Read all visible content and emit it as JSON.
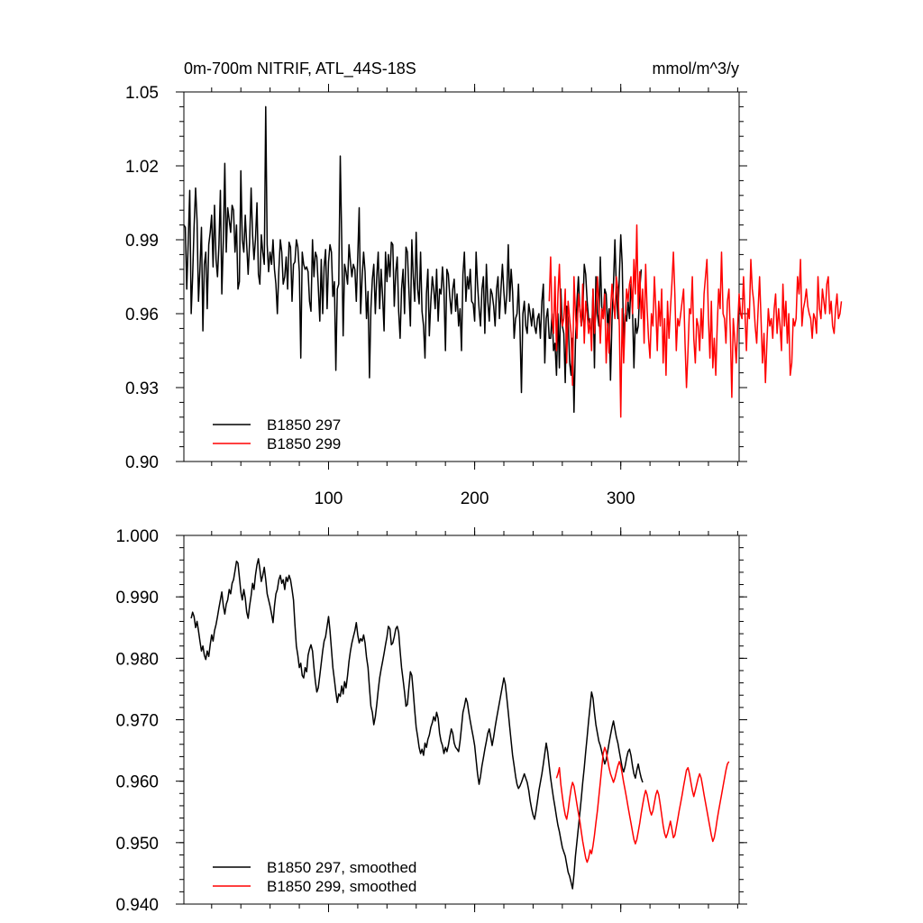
{
  "chart_data": [
    {
      "type": "line",
      "title": "0m-700m NITRIF, ATL_44S-18S",
      "units": "mmol/m^3/y",
      "xlim": [
        1,
        381
      ],
      "ylim": [
        0.9,
        1.05
      ],
      "x_ticks": [
        100,
        200,
        300
      ],
      "y_ticks": [
        "0.90",
        "0.93",
        "0.96",
        "0.99",
        "1.02",
        "1.05"
      ],
      "legend_position": "bottom-left",
      "grid": false,
      "series": [
        {
          "name": "B1850 297",
          "color": "#000000",
          "x_start": 1,
          "values": [
            0.996,
            0.995,
            0.97,
            0.99,
            1.01,
            0.96,
            0.975,
            0.995,
            1.011,
            0.998,
            0.965,
            0.978,
            0.995,
            0.953,
            0.98,
            0.985,
            0.962,
            0.988,
            0.993,
            1.0,
            0.979,
            1.004,
            0.982,
            0.975,
            0.988,
            1.01,
            0.968,
            0.99,
            1.021,
            0.985,
            1.003,
            0.998,
            0.993,
            1.004,
            1.002,
            0.985,
            0.996,
            0.97,
            0.973,
            1.018,
            0.99,
            0.985,
            1.0,
            0.988,
            0.976,
            0.989,
            1.011,
            0.992,
            0.982,
            0.99,
            1.005,
            0.976,
            0.972,
            0.992,
            0.985,
            0.98,
            1.044,
            0.988,
            0.977,
            0.985,
            0.98,
            0.99,
            0.978,
            0.972,
            0.96,
            0.978,
            0.99,
            0.985,
            0.972,
            0.975,
            0.983,
            0.97,
            0.989,
            0.987,
            0.965,
            0.98,
            0.981,
            0.99,
            0.987,
            0.977,
            0.942,
            0.985,
            0.98,
            0.978,
            0.979,
            0.977,
            0.965,
            0.961,
            0.99,
            0.975,
            0.985,
            0.983,
            0.971,
            0.957,
            0.982,
            0.96,
            0.979,
            0.986,
            0.962,
            0.981,
            0.988,
            0.985,
            0.967,
            0.973,
            0.937,
            0.97,
            0.972,
            1.024,
            0.99,
            0.951,
            0.98,
            0.977,
            0.972,
            0.988,
            0.981,
            0.975,
            0.98,
            0.978,
            0.965,
            0.983,
            1.003,
            0.96,
            0.975,
            0.985,
            0.977,
            0.958,
            0.969,
            0.934,
            0.962,
            0.974,
            0.98,
            0.96,
            0.975,
            0.985,
            0.962,
            0.978,
            0.967,
            0.953,
            0.985,
            0.973,
            0.984,
            0.975,
            0.989,
            0.988,
            0.963,
            0.977,
            0.983,
            0.961,
            0.95,
            0.97,
            0.978,
            0.96,
            0.987,
            0.985,
            0.97,
            0.955,
            0.99,
            0.975,
            0.965,
            0.993,
            0.97,
            0.964,
            0.985,
            0.961,
            0.955,
            0.942,
            0.968,
            0.978,
            0.951,
            0.965,
            0.975,
            0.97,
            0.962,
            0.978,
            0.957,
            0.97,
            0.968,
            0.979,
            0.97,
            0.945,
            0.978,
            0.976,
            0.967,
            0.96,
            0.97,
            0.974,
            0.961,
            0.968,
            0.955,
            0.962,
            0.945,
            0.976,
            0.985,
            0.965,
            0.975,
            0.97,
            0.978,
            0.965,
            0.964,
            0.957,
            0.985,
            0.972,
            0.962,
            0.955,
            0.97,
            0.975,
            0.952,
            0.98,
            0.965,
            0.957,
            0.97,
            0.968,
            0.963,
            0.955,
            0.97,
            0.975,
            0.958,
            0.97,
            0.98,
            0.969,
            0.96,
            0.968,
            0.988,
            0.965,
            0.978,
            0.969,
            0.95,
            0.958,
            0.96,
            0.972,
            0.955,
            0.928,
            0.96,
            0.965,
            0.955,
            0.952,
            0.964,
            0.96,
            0.955,
            0.962,
            0.955,
            0.952,
            0.958,
            0.96,
            0.95,
            0.965,
            0.972,
            0.94,
            0.958,
            0.962,
            0.95,
            0.95,
            0.96,
            0.945,
            0.948,
            0.935,
            0.96,
            0.938,
            0.97,
            0.955,
            0.952,
            0.932,
            0.963,
            0.958,
            0.94,
            0.935,
            0.95,
            0.92,
            0.948,
            0.965,
            0.975,
            0.962,
            0.955,
            0.96,
            0.98,
            0.976,
            0.965,
            0.958,
            0.955,
            0.95,
            0.97,
            0.938,
            0.975,
            0.96,
            0.955,
            0.983,
            0.963,
            0.958,
            0.97,
            0.968,
            0.955,
            0.962,
            0.933,
            0.958,
            0.972,
            0.99,
            0.97,
            0.958,
            0.975,
            0.992,
            0.98,
            0.948,
            0.96,
            0.957,
            0.965,
            0.958,
            0.972,
            0.962,
            0.938,
            0.958,
            0.952,
            0.955,
            0.97,
            0.978
          ]
        },
        {
          "name": "B1850 299",
          "color": "#ff0000",
          "x_start": 251,
          "values": [
            0.965,
            0.983,
            0.958,
            0.952,
            0.975,
            0.945,
            0.968,
            0.98,
            0.96,
            0.955,
            0.958,
            0.97,
            0.94,
            0.965,
            0.958,
            0.952,
            0.931,
            0.975,
            0.96,
            0.95,
            0.968,
            0.962,
            0.955,
            0.972,
            0.948,
            0.965,
            0.96,
            0.952,
            0.958,
            0.945,
            0.97,
            0.952,
            0.96,
            0.975,
            0.963,
            0.948,
            0.962,
            0.958,
            0.968,
            0.94,
            0.956,
            0.944,
            0.961,
            0.972,
            0.965,
            0.958,
            0.975,
            0.97,
            0.955,
            0.918,
            0.962,
            0.94,
            0.958,
            0.97,
            0.965,
            0.972,
            0.975,
            0.96,
            0.982,
            0.968,
            0.996,
            0.962,
            0.977,
            0.958,
            0.97,
            0.948,
            0.98,
            0.962,
            0.95,
            0.942,
            0.96,
            0.955,
            0.975,
            0.962,
            0.945,
            0.965,
            0.955,
            0.97,
            0.94,
            0.958,
            0.935,
            0.965,
            0.95,
            0.962,
            0.972,
            0.985,
            0.968,
            0.945,
            0.958,
            0.955,
            0.96,
            0.965,
            0.97,
            0.948,
            0.93,
            0.945,
            0.962,
            0.96,
            0.975,
            0.95,
            0.94,
            0.958,
            0.955,
            0.945,
            0.962,
            0.95,
            0.968,
            0.975,
            0.982,
            0.958,
            0.942,
            0.965,
            0.938,
            0.95,
            0.935,
            0.955,
            0.97,
            0.962,
            0.985,
            0.96,
            0.958,
            0.948,
            0.965,
            0.97,
            0.952,
            0.926,
            0.958,
            0.95,
            0.94,
            0.955,
            0.968,
            0.96,
            0.958,
            0.975,
            0.96,
            0.945,
            0.962,
            0.958,
            0.982,
            0.97,
            0.965,
            0.955,
            0.948,
            0.962,
            0.975,
            0.958,
            0.94,
            0.952,
            0.932,
            0.948,
            0.962,
            0.955,
            0.958,
            0.95,
            0.962,
            0.968,
            0.952,
            0.962,
            0.955,
            0.945,
            0.972,
            0.955,
            0.965,
            0.948,
            0.96,
            0.935,
            0.94,
            0.958,
            0.955,
            0.958,
            0.975,
            0.968,
            0.982,
            0.955,
            0.962,
            0.965,
            0.97,
            0.963,
            0.96,
            0.958,
            0.95,
            0.96,
            0.958,
            0.952,
            0.975,
            0.962,
            0.958,
            0.97,
            0.965,
            0.96,
            0.972,
            0.975,
            0.96,
            0.965,
            0.955,
            0.952,
            0.962,
            0.968,
            0.958,
            0.96,
            0.965
          ]
        }
      ]
    },
    {
      "type": "line",
      "title": "",
      "xlim": [
        1,
        381
      ],
      "ylim": [
        0.94,
        1.0
      ],
      "x_ticks": [
        100,
        200,
        300
      ],
      "y_ticks": [
        "0.940",
        "0.950",
        "0.960",
        "0.970",
        "0.980",
        "0.990",
        "1.000"
      ],
      "legend_position": "bottom-left",
      "grid": false,
      "series": [
        {
          "name": "B1850 297, smoothed",
          "color": "#000000",
          "x_start": 6,
          "values": [
            0.9865,
            0.9875,
            0.9868,
            0.985,
            0.986,
            0.9845,
            0.9828,
            0.9812,
            0.982,
            0.9805,
            0.9798,
            0.9812,
            0.9803,
            0.9822,
            0.9838,
            0.9828,
            0.9845,
            0.9855,
            0.9868,
            0.9882,
            0.9895,
            0.9908,
            0.9885,
            0.9872,
            0.9888,
            0.9895,
            0.9912,
            0.9905,
            0.9922,
            0.9928,
            0.9942,
            0.9958,
            0.9955,
            0.9932,
            0.9908,
            0.9895,
            0.9912,
            0.9898,
            0.9875,
            0.9865,
            0.9885,
            0.9902,
            0.9922,
            0.9912,
            0.9935,
            0.9952,
            0.9962,
            0.9945,
            0.9925,
            0.9935,
            0.9948,
            0.9928,
            0.9905,
            0.9895,
            0.9885,
            0.9872,
            0.9858,
            0.9885,
            0.9905,
            0.9912,
            0.9928,
            0.9935,
            0.9922,
            0.9928,
            0.9912,
            0.9932,
            0.9925,
            0.9935,
            0.9928,
            0.9912,
            0.9895,
            0.9855,
            0.982,
            0.9805,
            0.9785,
            0.9792,
            0.9772,
            0.9768,
            0.9785,
            0.9778,
            0.9805,
            0.9815,
            0.9822,
            0.9812,
            0.9785,
            0.9762,
            0.9745,
            0.9752,
            0.9772,
            0.9792,
            0.9812,
            0.9828,
            0.9835,
            0.9852,
            0.9868,
            0.9845,
            0.9815,
            0.9785,
            0.9765,
            0.9745,
            0.9728,
            0.9742,
            0.9738,
            0.9755,
            0.9742,
            0.9762,
            0.9752,
            0.9772,
            0.9795,
            0.9812,
            0.9825,
            0.9835,
            0.9845,
            0.9858,
            0.9838,
            0.9825,
            0.9832,
            0.9828,
            0.9838,
            0.9825,
            0.9802,
            0.9785,
            0.9752,
            0.9722,
            0.9712,
            0.9692,
            0.9705,
            0.9725,
            0.9748,
            0.9768,
            0.9782,
            0.9795,
            0.9808,
            0.9822,
            0.9835,
            0.9852,
            0.9848,
            0.9822,
            0.9825,
            0.9835,
            0.9848,
            0.9852,
            0.9842,
            0.9812,
            0.9785,
            0.9765,
            0.9745,
            0.9722,
            0.9725,
            0.9752,
            0.9778,
            0.9772,
            0.9745,
            0.9715,
            0.9688,
            0.9672,
            0.9655,
            0.9645,
            0.9652,
            0.9642,
            0.9662,
            0.9655,
            0.9668,
            0.9675,
            0.9688,
            0.9695,
            0.9705,
            0.9698,
            0.9712,
            0.9702,
            0.9678,
            0.9665,
            0.9658,
            0.9645,
            0.9655,
            0.9648,
            0.9658,
            0.9672,
            0.9685,
            0.9678,
            0.9662,
            0.9655,
            0.9652,
            0.9648,
            0.9665,
            0.9688,
            0.9712,
            0.9722,
            0.9735,
            0.9728,
            0.9712,
            0.9698,
            0.9685,
            0.9672,
            0.9658,
            0.9635,
            0.9612,
            0.9595,
            0.9608,
            0.9625,
            0.9638,
            0.9652,
            0.9665,
            0.9678,
            0.9685,
            0.9672,
            0.9658,
            0.9672,
            0.9688,
            0.9702,
            0.9715,
            0.9728,
            0.9742,
            0.9755,
            0.9768,
            0.9758,
            0.9735,
            0.9712,
            0.9688,
            0.9665,
            0.9642,
            0.9625,
            0.9608,
            0.9595,
            0.9588,
            0.9592,
            0.9598,
            0.9605,
            0.9612,
            0.9605,
            0.9598,
            0.9585,
            0.9568,
            0.9555,
            0.9545,
            0.9538,
            0.9552,
            0.9568,
            0.9585,
            0.9598,
            0.9612,
            0.9628,
            0.9645,
            0.9662,
            0.9648,
            0.9625,
            0.9605,
            0.9588,
            0.9572,
            0.9558,
            0.9542,
            0.9528,
            0.9518,
            0.9505,
            0.9492,
            0.9485,
            0.9478,
            0.9465,
            0.9452,
            0.9445,
            0.9435,
            0.9425,
            0.9448,
            0.9478,
            0.9502,
            0.9525,
            0.9548,
            0.9572,
            0.9598,
            0.9622,
            0.9648,
            0.9672,
            0.9698,
            0.9722,
            0.9745,
            0.9735,
            0.9712,
            0.9692,
            0.9678,
            0.9665,
            0.9658,
            0.9648,
            0.9638,
            0.9628,
            0.9635,
            0.9648,
            0.9662,
            0.9675,
            0.9688,
            0.9698,
            0.9685,
            0.9672,
            0.9662,
            0.9648,
            0.9635,
            0.9622,
            0.9615,
            0.9625,
            0.9638,
            0.9648,
            0.9652,
            0.9642,
            0.9625,
            0.9612,
            0.9605,
            0.9618,
            0.9628,
            0.9615,
            0.9605,
            0.9598
          ]
        },
        {
          "name": "B1850 299, smoothed",
          "color": "#ff0000",
          "x_start": 256,
          "values": [
            0.9605,
            0.9612,
            0.9622,
            0.9595,
            0.9575,
            0.9558,
            0.9545,
            0.9538,
            0.9552,
            0.9572,
            0.9588,
            0.9598,
            0.9592,
            0.9578,
            0.9562,
            0.9548,
            0.9535,
            0.9518,
            0.9502,
            0.9488,
            0.9475,
            0.9468,
            0.9475,
            0.9488,
            0.9482,
            0.9495,
            0.9512,
            0.9532,
            0.9552,
            0.9575,
            0.9598,
            0.9622,
            0.9645,
            0.9655,
            0.9648,
            0.9635,
            0.9622,
            0.9612,
            0.9605,
            0.9598,
            0.9605,
            0.9615,
            0.9625,
            0.9632,
            0.9625,
            0.9612,
            0.9598,
            0.9585,
            0.9572,
            0.9558,
            0.9545,
            0.9532,
            0.9518,
            0.9505,
            0.9498,
            0.9505,
            0.9518,
            0.9532,
            0.9548,
            0.9562,
            0.9575,
            0.9585,
            0.9578,
            0.9565,
            0.9552,
            0.9545,
            0.9552,
            0.9565,
            0.9578,
            0.9585,
            0.9578,
            0.9562,
            0.9545,
            0.9528,
            0.9515,
            0.9508,
            0.9515,
            0.9525,
            0.9535,
            0.9522,
            0.9508,
            0.9512,
            0.9525,
            0.9538,
            0.9552,
            0.9565,
            0.9578,
            0.9592,
            0.9605,
            0.9618,
            0.9622,
            0.9612,
            0.9598,
            0.9585,
            0.9575,
            0.9585,
            0.9595,
            0.9605,
            0.9612,
            0.9605,
            0.9592,
            0.9578,
            0.9565,
            0.9552,
            0.9538,
            0.9525,
            0.9512,
            0.9502,
            0.9508,
            0.9522,
            0.9538,
            0.9552,
            0.9565,
            0.9578,
            0.9592,
            0.9605,
            0.9618,
            0.9628,
            0.9632
          ]
        }
      ]
    }
  ]
}
